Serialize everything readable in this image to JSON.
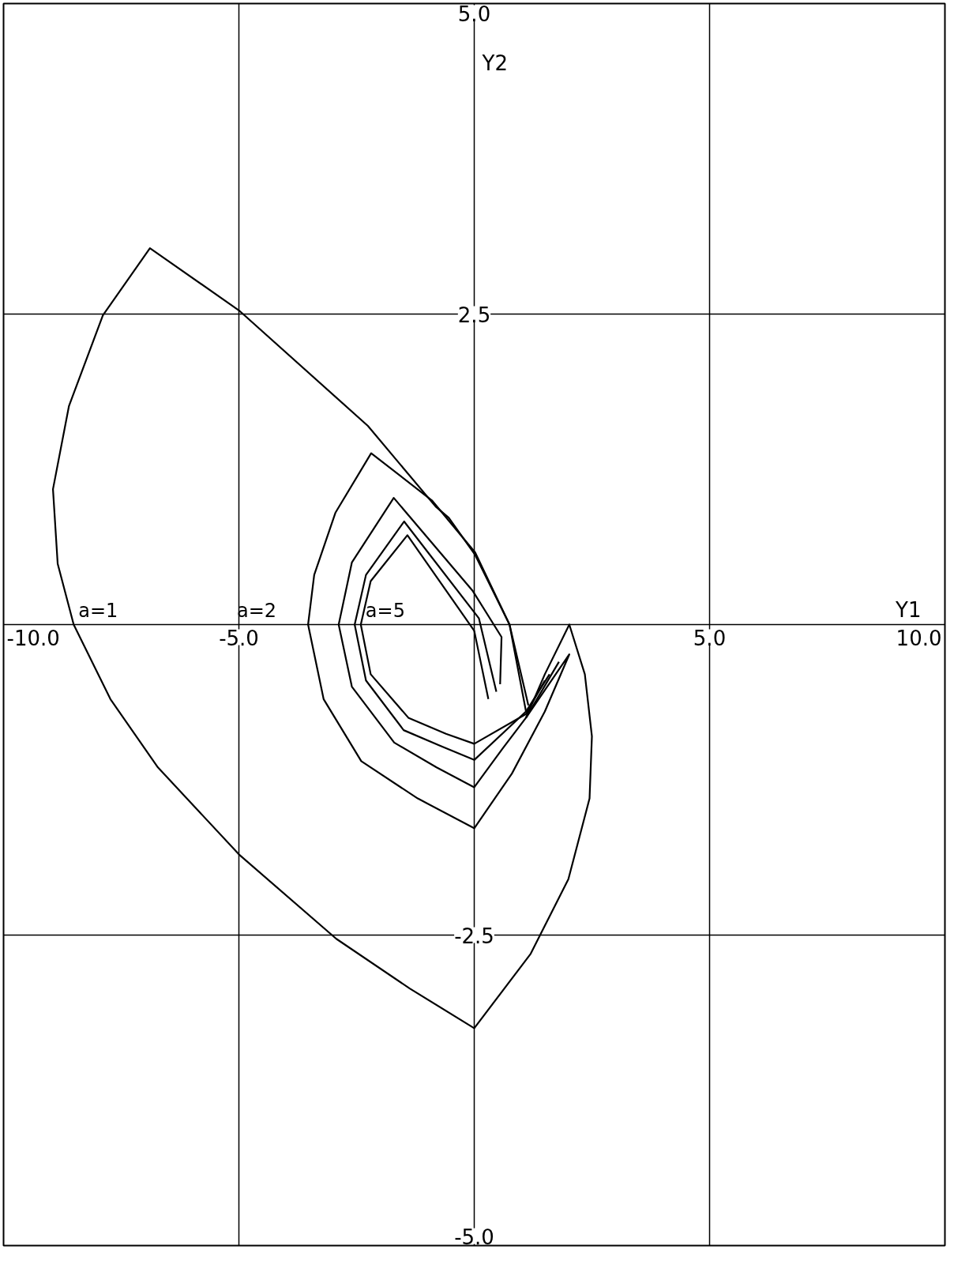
{
  "chart_data": {
    "type": "line",
    "xlabel": "Y1",
    "ylabel": "Y2",
    "xlim": [
      -10,
      10
    ],
    "ylim": [
      -5,
      5
    ],
    "xticks": [
      {
        "value": -10,
        "label": "-10.0"
      },
      {
        "value": -5,
        "label": "-5.0"
      },
      {
        "value": 0,
        "label": null
      },
      {
        "value": 5,
        "label": "5.0"
      },
      {
        "value": 10,
        "label": "10.0"
      }
    ],
    "yticks": [
      {
        "value": -5,
        "label": "-5.0"
      },
      {
        "value": -2.5,
        "label": "-2.5"
      },
      {
        "value": 0,
        "label": null
      },
      {
        "value": 2.5,
        "label": "2.5"
      },
      {
        "value": 5,
        "label": "5.0"
      }
    ],
    "grid": true,
    "marker": "none",
    "line_style": "solid",
    "series": [
      {
        "name": "a=1",
        "color": "#000000",
        "x": [
          1.15,
          0.75,
          0.02,
          -0.54,
          -0.82,
          -2.26,
          -5.0,
          -6.89,
          -7.89,
          -8.61,
          -8.95,
          -8.85,
          -8.51,
          -7.73,
          -6.72,
          -5.0,
          -2.93,
          -1.37,
          0.0,
          1.2,
          2.0,
          2.45,
          2.5,
          2.35,
          2.02,
          1.5,
          1.1
        ],
        "values": [
          -0.65,
          0.0,
          0.56,
          0.86,
          0.95,
          1.6,
          2.53,
          3.03,
          2.49,
          1.76,
          1.09,
          0.49,
          0.0,
          -0.6,
          -1.15,
          -1.85,
          -2.53,
          -2.93,
          -3.25,
          -2.65,
          -2.05,
          -1.4,
          -0.9,
          -0.4,
          0.0,
          -0.4,
          -0.75
        ]
      },
      {
        "name": "a=2",
        "color": "#000000",
        "x": [
          1.1,
          0.75,
          0.02,
          -0.9,
          -2.19,
          -2.95,
          -3.4,
          -3.53,
          -3.2,
          -2.4,
          -1.2,
          0.0,
          0.8,
          1.5,
          2.02,
          1.1
        ],
        "values": [
          -0.7,
          0.0,
          0.58,
          1.0,
          1.38,
          0.9,
          0.4,
          0.0,
          -0.6,
          -1.1,
          -1.4,
          -1.64,
          -1.2,
          -0.7,
          -0.24,
          -0.75
        ]
      },
      {
        "color": "#000000",
        "x": [
          0.55,
          0.58,
          -0.03,
          -1.71,
          -2.6,
          -2.88,
          -2.6,
          -1.7,
          -0.8,
          0.0,
          0.6,
          1.1,
          1.8
        ],
        "values": [
          -0.48,
          -0.1,
          0.27,
          1.02,
          0.5,
          0.0,
          -0.5,
          -0.95,
          -1.15,
          -1.31,
          -1.0,
          -0.75,
          -0.3
        ]
      },
      {
        "color": "#000000",
        "x": [
          0.47,
          0.1,
          -1.49,
          -2.3,
          -2.54,
          -2.3,
          -1.5,
          -0.7,
          0.0,
          1.1,
          1.6
        ],
        "values": [
          -0.54,
          0.05,
          0.83,
          0.4,
          0.0,
          -0.45,
          -0.85,
          -0.98,
          -1.09,
          -0.7,
          -0.4
        ]
      },
      {
        "name": "a=5",
        "color": "#000000",
        "x": [
          0.3,
          0.0,
          -1.42,
          -2.2,
          -2.41,
          -2.2,
          -1.4,
          -0.6,
          0.0,
          1.1,
          1.5
        ],
        "values": [
          -0.6,
          -0.05,
          0.72,
          0.35,
          0.0,
          -0.4,
          -0.75,
          -0.88,
          -0.96,
          -0.72,
          -0.45
        ]
      }
    ]
  }
}
